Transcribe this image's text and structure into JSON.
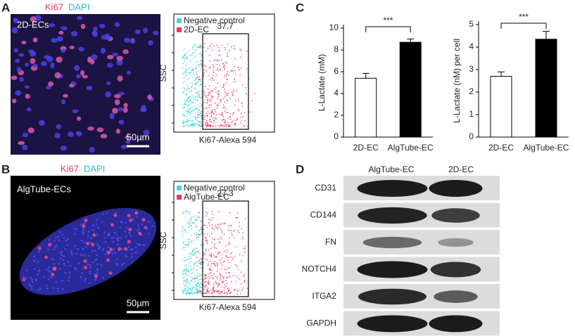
{
  "panels": {
    "a": {
      "label": "A",
      "stain": [
        "Ki67",
        "DAPI"
      ],
      "image_label": "2D-ECs",
      "scale_bar": "50µm",
      "flow": {
        "legend": [
          "Negative control",
          "2D-EC"
        ],
        "gate_value": 37.7,
        "y_label": "SSC",
        "x_label": "Ki67-Alexa 594"
      }
    },
    "b": {
      "label": "B",
      "stain": [
        "Ki67",
        "DAPI"
      ],
      "image_label": "AlgTube-ECs",
      "scale_bar": "50µm",
      "flow": {
        "legend": [
          "Negative control",
          "AlgTube-EC"
        ],
        "gate_value": 27.3,
        "y_label": "SSC",
        "x_label": "Ki67-Alexa 594"
      }
    },
    "c": {
      "label": "C"
    },
    "d": {
      "label": "D",
      "columns": [
        "AlgTube-EC",
        "2D-EC"
      ],
      "rows": [
        "CD31",
        "CD144",
        "FN",
        "NOTCH4",
        "ITGA2",
        "GAPDH"
      ]
    }
  },
  "chart_data": [
    {
      "type": "bar",
      "ylabel": "L-Lactate (mM)",
      "categories": [
        "2D-EC",
        "AlgTube-EC"
      ],
      "values": [
        5.4,
        8.7
      ],
      "errors": [
        0.45,
        0.3
      ],
      "colors": [
        "#ffffff",
        "#000000"
      ],
      "ylim": [
        0,
        10
      ],
      "yticks": [
        0,
        2,
        4,
        6,
        8,
        10
      ],
      "significance": "***"
    },
    {
      "type": "bar",
      "ylabel": "L-Lactate (nM) per cell",
      "categories": [
        "2D-EC",
        "AlgTube-EC"
      ],
      "values": [
        2.7,
        4.35
      ],
      "errors": [
        0.2,
        0.35
      ],
      "colors": [
        "#ffffff",
        "#000000"
      ],
      "ylim": [
        0,
        5
      ],
      "yticks": [
        0,
        1,
        2,
        3,
        4,
        5
      ],
      "significance": "***"
    }
  ]
}
